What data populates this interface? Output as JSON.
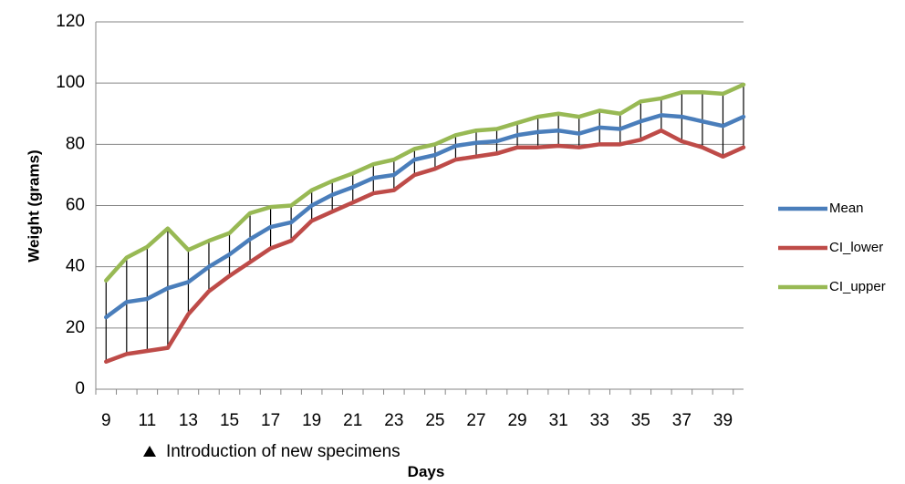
{
  "chart_data": {
    "type": "line",
    "title": "",
    "xlabel": "Days",
    "ylabel": "Weight (grams)",
    "ylim": [
      0,
      120
    ],
    "yticks": [
      "0",
      "20",
      "40",
      "60",
      "80",
      "100",
      "120"
    ],
    "xtick_labels": [
      "9",
      "11",
      "13",
      "15",
      "17",
      "19",
      "21",
      "23",
      "25",
      "27",
      "29",
      "31",
      "33",
      "35",
      "37",
      "39"
    ],
    "grid": "horizontal",
    "legend_position": "right",
    "x": [
      9,
      10,
      11,
      12,
      13,
      14,
      15,
      16,
      17,
      18,
      19,
      20,
      21,
      22,
      23,
      24,
      25,
      26,
      27,
      28,
      29,
      30,
      31,
      32,
      33,
      34,
      35,
      36,
      37,
      38,
      39,
      40
    ],
    "series": [
      {
        "name": "Mean",
        "color": "#4a7ebb",
        "values": [
          23.5,
          28.5,
          29.5,
          33,
          35,
          40,
          44,
          49,
          53,
          54.5,
          60,
          63.5,
          66,
          69,
          70,
          75,
          76.5,
          79.5,
          80.5,
          81,
          83,
          84,
          84.5,
          83.5,
          85.5,
          85,
          87.5,
          89.5,
          89,
          87.5,
          86,
          89
        ]
      },
      {
        "name": "CI_lower",
        "color": "#be4b48",
        "values": [
          9,
          11.5,
          12.5,
          13.5,
          24.5,
          32,
          37,
          41.5,
          46,
          48.5,
          55,
          58,
          61,
          64,
          65,
          70,
          72,
          75,
          76,
          77,
          79,
          79,
          79.5,
          79,
          80,
          80,
          81.5,
          84.5,
          81,
          79,
          76,
          79
        ]
      },
      {
        "name": "CI_upper",
        "color": "#98b954",
        "values": [
          35.5,
          43,
          46.5,
          52.5,
          45.5,
          48.5,
          51,
          57.5,
          59.5,
          60,
          65,
          68,
          70.5,
          73.5,
          75,
          78.5,
          80,
          83,
          84.5,
          85,
          87,
          89,
          90,
          89,
          91,
          90,
          94,
          95,
          97,
          97,
          96.5,
          99.5
        ]
      }
    ],
    "annotations": [
      {
        "text": "Introduction of new specimens",
        "marker": "triangle-up",
        "x": 12
      }
    ]
  }
}
